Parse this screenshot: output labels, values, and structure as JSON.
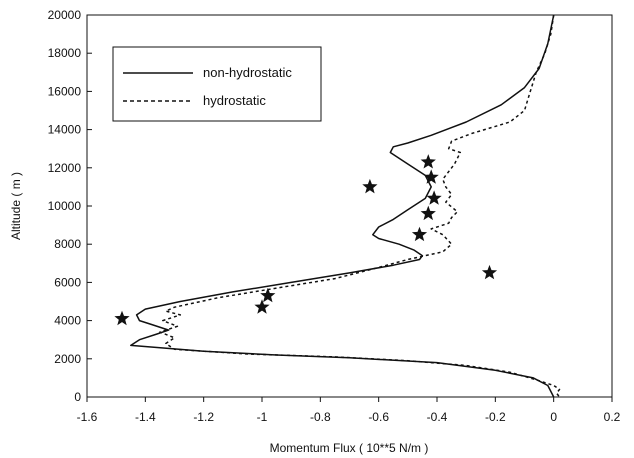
{
  "chart_data": {
    "type": "line",
    "xlabel": "Momentum Flux ( 10**5 N/m )",
    "ylabel": "Altitude ( m )",
    "xlim": [
      -1.6,
      0.2
    ],
    "ylim": [
      0,
      20000
    ],
    "x_ticks": [
      "-1.6",
      "-1.4",
      "-1.2",
      "-1",
      "-0.8",
      "-0.6",
      "-0.4",
      "-0.2",
      "0",
      "0.2"
    ],
    "y_ticks": [
      "0",
      "2000",
      "4000",
      "6000",
      "8000",
      "10000",
      "12000",
      "14000",
      "16000",
      "18000",
      "20000"
    ],
    "grid": false,
    "legend_position": "top-left",
    "series": [
      {
        "name": "non-hydrostatic",
        "style": "solid",
        "points": [
          [
            0.0,
            20000
          ],
          [
            -0.02,
            18500
          ],
          [
            -0.05,
            17200
          ],
          [
            -0.1,
            16200
          ],
          [
            -0.18,
            15300
          ],
          [
            -0.3,
            14400
          ],
          [
            -0.42,
            13700
          ],
          [
            -0.5,
            13300
          ],
          [
            -0.55,
            13100
          ],
          [
            -0.56,
            12800
          ],
          [
            -0.5,
            12200
          ],
          [
            -0.44,
            11600
          ],
          [
            -0.42,
            11000
          ],
          [
            -0.44,
            10400
          ],
          [
            -0.5,
            9800
          ],
          [
            -0.55,
            9300
          ],
          [
            -0.6,
            8900
          ],
          [
            -0.62,
            8500
          ],
          [
            -0.6,
            8300
          ],
          [
            -0.53,
            8000
          ],
          [
            -0.48,
            7700
          ],
          [
            -0.45,
            7400
          ],
          [
            -0.46,
            7200
          ],
          [
            -0.55,
            6900
          ],
          [
            -0.7,
            6500
          ],
          [
            -0.9,
            6000
          ],
          [
            -1.1,
            5500
          ],
          [
            -1.28,
            5000
          ],
          [
            -1.4,
            4600
          ],
          [
            -1.43,
            4300
          ],
          [
            -1.42,
            4000
          ],
          [
            -1.38,
            3800
          ],
          [
            -1.32,
            3500
          ],
          [
            -1.36,
            3300
          ],
          [
            -1.42,
            3000
          ],
          [
            -1.45,
            2700
          ],
          [
            -1.2,
            2400
          ],
          [
            -0.95,
            2200
          ],
          [
            -0.7,
            2050
          ],
          [
            -0.4,
            1800
          ],
          [
            -0.2,
            1400
          ],
          [
            -0.07,
            1000
          ],
          [
            -0.02,
            600
          ],
          [
            0.0,
            0
          ]
        ]
      },
      {
        "name": "hydrostatic",
        "style": "dashed",
        "points": [
          [
            0.0,
            20000
          ],
          [
            -0.01,
            19000
          ],
          [
            -0.03,
            18000
          ],
          [
            -0.06,
            17000
          ],
          [
            -0.08,
            16000
          ],
          [
            -0.1,
            15000
          ],
          [
            -0.15,
            14400
          ],
          [
            -0.28,
            13800
          ],
          [
            -0.35,
            13400
          ],
          [
            -0.36,
            13000
          ],
          [
            -0.32,
            12800
          ],
          [
            -0.34,
            12200
          ],
          [
            -0.36,
            11800
          ],
          [
            -0.38,
            11400
          ],
          [
            -0.37,
            11000
          ],
          [
            -0.35,
            10600
          ],
          [
            -0.37,
            10200
          ],
          [
            -0.33,
            9700
          ],
          [
            -0.35,
            9400
          ],
          [
            -0.36,
            9100
          ],
          [
            -0.42,
            8800
          ],
          [
            -0.38,
            8500
          ],
          [
            -0.35,
            8000
          ],
          [
            -0.38,
            7600
          ],
          [
            -0.5,
            7200
          ],
          [
            -0.62,
            6700
          ],
          [
            -0.75,
            6200
          ],
          [
            -0.95,
            5700
          ],
          [
            -1.15,
            5200
          ],
          [
            -1.3,
            4700
          ],
          [
            -1.33,
            4500
          ],
          [
            -1.28,
            4300
          ],
          [
            -1.34,
            4000
          ],
          [
            -1.29,
            3700
          ],
          [
            -1.35,
            3400
          ],
          [
            -1.3,
            3100
          ],
          [
            -1.33,
            2800
          ],
          [
            -1.3,
            2500
          ],
          [
            -1.05,
            2250
          ],
          [
            -0.75,
            2100
          ],
          [
            -0.5,
            1900
          ],
          [
            -0.3,
            1650
          ],
          [
            -0.15,
            1300
          ],
          [
            -0.06,
            900
          ],
          [
            0.0,
            600
          ],
          [
            0.02,
            400
          ],
          [
            0.01,
            200
          ],
          [
            0.02,
            0
          ]
        ]
      }
    ],
    "markers": {
      "symbol": "star",
      "points": [
        [
          -1.48,
          4100
        ],
        [
          -1.0,
          4700
        ],
        [
          -0.98,
          5300
        ],
        [
          -0.63,
          11000
        ],
        [
          -0.43,
          12300
        ],
        [
          -0.42,
          11500
        ],
        [
          -0.41,
          10400
        ],
        [
          -0.43,
          9600
        ],
        [
          -0.46,
          8500
        ],
        [
          -0.22,
          6500
        ]
      ]
    }
  }
}
